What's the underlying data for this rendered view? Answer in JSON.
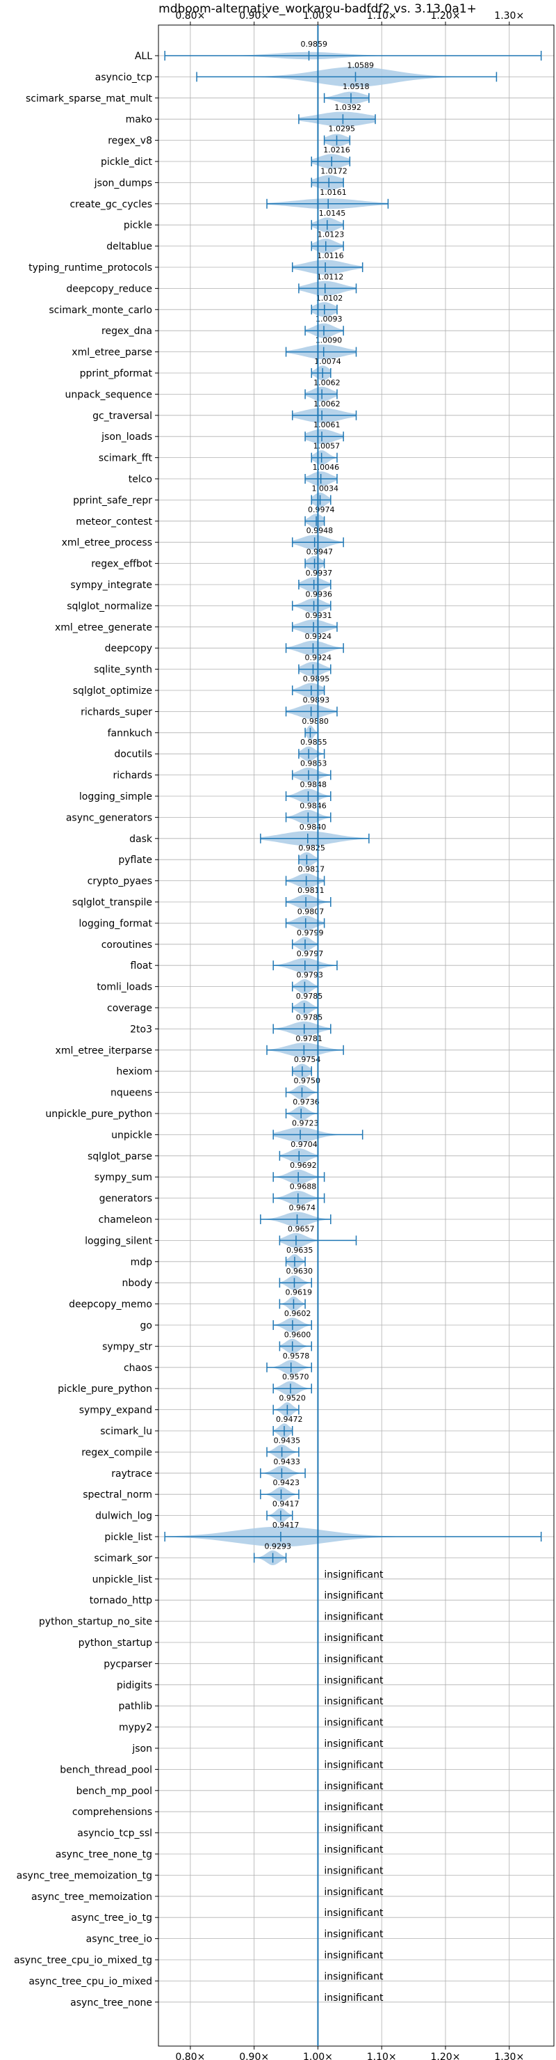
{
  "chart_data": {
    "type": "violin",
    "title": "mdboom-alternative_workarou-badfdf2 vs. 3.13.0a1+",
    "xlim": [
      0.75,
      1.37
    ],
    "x_ticks": [
      0.8,
      0.9,
      1.0,
      1.1,
      1.2,
      1.3
    ],
    "x_tick_labels": [
      "0.80×",
      "0.90×",
      "1.00×",
      "1.10×",
      "1.20×",
      "1.30×"
    ],
    "reference_line": 1.0,
    "grid": true,
    "colors": {
      "violin": "#aacbe6",
      "line": "#1f77b4",
      "grid": "#b0b0b0"
    },
    "insignificant_text": "insignificant",
    "rows": [
      {
        "name": "ALL",
        "value": 0.9859,
        "label": "0.9859",
        "min": 0.76,
        "max": 1.35,
        "spread": 0.05,
        "width": 0.35
      },
      {
        "name": "asyncio_tcp",
        "value": 1.0589,
        "label": "1.0589",
        "min": 0.81,
        "max": 1.28,
        "spread": 0.06,
        "width": 0.95
      },
      {
        "name": "scimark_sparse_mat_mult",
        "value": 1.0518,
        "label": "1.0518",
        "min": 1.01,
        "max": 1.08,
        "spread": 0.02,
        "width": 0.6
      },
      {
        "name": "mako",
        "value": 1.0392,
        "label": "1.0392",
        "min": 0.97,
        "max": 1.09,
        "spread": 0.04,
        "width": 0.7
      },
      {
        "name": "regex_v8",
        "value": 1.0295,
        "label": "1.0295",
        "min": 1.01,
        "max": 1.05,
        "spread": 0.015,
        "width": 0.6
      },
      {
        "name": "pickle_dict",
        "value": 1.0216,
        "label": "1.0216",
        "min": 0.99,
        "max": 1.05,
        "spread": 0.02,
        "width": 0.7
      },
      {
        "name": "json_dumps",
        "value": 1.0172,
        "label": "1.0172",
        "min": 0.99,
        "max": 1.04,
        "spread": 0.02,
        "width": 0.7
      },
      {
        "name": "create_gc_cycles",
        "value": 1.0161,
        "label": "1.0161",
        "min": 0.92,
        "max": 1.11,
        "spread": 0.05,
        "width": 0.5
      },
      {
        "name": "pickle",
        "value": 1.0145,
        "label": "1.0145",
        "min": 0.99,
        "max": 1.04,
        "spread": 0.015,
        "width": 0.7
      },
      {
        "name": "deltablue",
        "value": 1.0123,
        "label": "1.0123",
        "min": 0.99,
        "max": 1.04,
        "spread": 0.015,
        "width": 0.7
      },
      {
        "name": "typing_runtime_protocols",
        "value": 1.0116,
        "label": "1.0116",
        "min": 0.96,
        "max": 1.07,
        "spread": 0.03,
        "width": 0.7
      },
      {
        "name": "deepcopy_reduce",
        "value": 1.0112,
        "label": "1.0112",
        "min": 0.97,
        "max": 1.06,
        "spread": 0.025,
        "width": 0.7
      },
      {
        "name": "scimark_monte_carlo",
        "value": 1.0102,
        "label": "1.0102",
        "min": 0.99,
        "max": 1.03,
        "spread": 0.015,
        "width": 0.7
      },
      {
        "name": "regex_dna",
        "value": 1.0093,
        "label": "1.0093",
        "min": 0.98,
        "max": 1.04,
        "spread": 0.015,
        "width": 0.7
      },
      {
        "name": "xml_etree_parse",
        "value": 1.009,
        "label": "1.0090",
        "min": 0.95,
        "max": 1.06,
        "spread": 0.03,
        "width": 0.7
      },
      {
        "name": "pprint_pformat",
        "value": 1.0074,
        "label": "1.0074",
        "min": 0.99,
        "max": 1.02,
        "spread": 0.01,
        "width": 0.7
      },
      {
        "name": "unpack_sequence",
        "value": 1.0062,
        "label": "1.0062",
        "min": 0.98,
        "max": 1.03,
        "spread": 0.015,
        "width": 0.7
      },
      {
        "name": "gc_traversal",
        "value": 1.0062,
        "label": "1.0062",
        "min": 0.96,
        "max": 1.06,
        "spread": 0.03,
        "width": 0.7
      },
      {
        "name": "json_loads",
        "value": 1.0061,
        "label": "1.0061",
        "min": 0.98,
        "max": 1.04,
        "spread": 0.02,
        "width": 0.7
      },
      {
        "name": "scimark_fft",
        "value": 1.0057,
        "label": "1.0057",
        "min": 0.99,
        "max": 1.03,
        "spread": 0.01,
        "width": 0.7
      },
      {
        "name": "telco",
        "value": 1.0046,
        "label": "1.0046",
        "min": 0.98,
        "max": 1.03,
        "spread": 0.015,
        "width": 0.7
      },
      {
        "name": "pprint_safe_repr",
        "value": 1.0034,
        "label": "1.0034",
        "min": 0.99,
        "max": 1.02,
        "spread": 0.01,
        "width": 0.7
      },
      {
        "name": "meteor_contest",
        "value": 0.9974,
        "label": "0.9974",
        "min": 0.98,
        "max": 1.01,
        "spread": 0.01,
        "width": 0.7
      },
      {
        "name": "xml_etree_process",
        "value": 0.9948,
        "label": "0.9948",
        "min": 0.96,
        "max": 1.04,
        "spread": 0.02,
        "width": 0.7
      },
      {
        "name": "regex_effbot",
        "value": 0.9947,
        "label": "0.9947",
        "min": 0.98,
        "max": 1.01,
        "spread": 0.01,
        "width": 0.7
      },
      {
        "name": "sympy_integrate",
        "value": 0.9937,
        "label": "0.9937",
        "min": 0.97,
        "max": 1.02,
        "spread": 0.015,
        "width": 0.7
      },
      {
        "name": "sqlglot_normalize",
        "value": 0.9936,
        "label": "0.9936",
        "min": 0.96,
        "max": 1.02,
        "spread": 0.015,
        "width": 0.7
      },
      {
        "name": "xml_etree_generate",
        "value": 0.9931,
        "label": "0.9931",
        "min": 0.96,
        "max": 1.03,
        "spread": 0.02,
        "width": 0.7
      },
      {
        "name": "deepcopy",
        "value": 0.9924,
        "label": "0.9924",
        "min": 0.95,
        "max": 1.04,
        "spread": 0.02,
        "width": 0.7
      },
      {
        "name": "sqlite_synth",
        "value": 0.9924,
        "label": "0.9924",
        "min": 0.97,
        "max": 1.02,
        "spread": 0.015,
        "width": 0.7
      },
      {
        "name": "sqlglot_optimize",
        "value": 0.9895,
        "label": "0.9895",
        "min": 0.96,
        "max": 1.01,
        "spread": 0.015,
        "width": 0.7
      },
      {
        "name": "richards_super",
        "value": 0.9893,
        "label": "0.9893",
        "min": 0.95,
        "max": 1.03,
        "spread": 0.02,
        "width": 0.7
      },
      {
        "name": "fannkuch",
        "value": 0.988,
        "label": "0.9880",
        "min": 0.98,
        "max": 1.0,
        "spread": 0.005,
        "width": 0.7
      },
      {
        "name": "docutils",
        "value": 0.9855,
        "label": "0.9855",
        "min": 0.97,
        "max": 1.01,
        "spread": 0.01,
        "width": 0.7
      },
      {
        "name": "richards",
        "value": 0.9853,
        "label": "0.9853",
        "min": 0.96,
        "max": 1.02,
        "spread": 0.015,
        "width": 0.7
      },
      {
        "name": "logging_simple",
        "value": 0.9848,
        "label": "0.9848",
        "min": 0.95,
        "max": 1.02,
        "spread": 0.015,
        "width": 0.7
      },
      {
        "name": "async_generators",
        "value": 0.9846,
        "label": "0.9846",
        "min": 0.95,
        "max": 1.02,
        "spread": 0.015,
        "width": 0.7
      },
      {
        "name": "dask",
        "value": 0.984,
        "label": "0.9840",
        "min": 0.91,
        "max": 1.08,
        "spread": 0.04,
        "width": 0.7
      },
      {
        "name": "pyflate",
        "value": 0.9825,
        "label": "0.9825",
        "min": 0.97,
        "max": 1.0,
        "spread": 0.01,
        "width": 0.7
      },
      {
        "name": "crypto_pyaes",
        "value": 0.9817,
        "label": "0.9817",
        "min": 0.95,
        "max": 1.01,
        "spread": 0.015,
        "width": 0.7
      },
      {
        "name": "sqlglot_transpile",
        "value": 0.9811,
        "label": "0.9811",
        "min": 0.95,
        "max": 1.02,
        "spread": 0.015,
        "width": 0.7
      },
      {
        "name": "logging_format",
        "value": 0.9807,
        "label": "0.9807",
        "min": 0.95,
        "max": 1.01,
        "spread": 0.015,
        "width": 0.7
      },
      {
        "name": "coroutines",
        "value": 0.9799,
        "label": "0.9799",
        "min": 0.96,
        "max": 1.0,
        "spread": 0.01,
        "width": 0.7
      },
      {
        "name": "float",
        "value": 0.9797,
        "label": "0.9797",
        "min": 0.93,
        "max": 1.03,
        "spread": 0.02,
        "width": 0.7
      },
      {
        "name": "tomli_loads",
        "value": 0.9793,
        "label": "0.9793",
        "min": 0.96,
        "max": 1.0,
        "spread": 0.01,
        "width": 0.7
      },
      {
        "name": "coverage",
        "value": 0.9785,
        "label": "0.9785",
        "min": 0.96,
        "max": 1.0,
        "spread": 0.01,
        "width": 0.7
      },
      {
        "name": "2to3",
        "value": 0.9785,
        "label": "0.9785",
        "min": 0.93,
        "max": 1.02,
        "spread": 0.02,
        "width": 0.7
      },
      {
        "name": "xml_etree_iterparse",
        "value": 0.9781,
        "label": "0.9781",
        "min": 0.92,
        "max": 1.04,
        "spread": 0.025,
        "width": 0.7
      },
      {
        "name": "hexiom",
        "value": 0.9754,
        "label": "0.9754",
        "min": 0.96,
        "max": 0.99,
        "spread": 0.01,
        "width": 0.7
      },
      {
        "name": "nqueens",
        "value": 0.975,
        "label": "0.9750",
        "min": 0.95,
        "max": 1.0,
        "spread": 0.01,
        "width": 0.7
      },
      {
        "name": "unpickle_pure_python",
        "value": 0.9736,
        "label": "0.9736",
        "min": 0.95,
        "max": 1.0,
        "spread": 0.01,
        "width": 0.7
      },
      {
        "name": "unpickle",
        "value": 0.9723,
        "label": "0.9723",
        "min": 0.93,
        "max": 1.07,
        "spread": 0.025,
        "width": 0.7
      },
      {
        "name": "sqlglot_parse",
        "value": 0.9704,
        "label": "0.9704",
        "min": 0.94,
        "max": 1.0,
        "spread": 0.015,
        "width": 0.7
      },
      {
        "name": "sympy_sum",
        "value": 0.9692,
        "label": "0.9692",
        "min": 0.93,
        "max": 1.01,
        "spread": 0.015,
        "width": 0.7
      },
      {
        "name": "generators",
        "value": 0.9688,
        "label": "0.9688",
        "min": 0.93,
        "max": 1.01,
        "spread": 0.015,
        "width": 0.7
      },
      {
        "name": "chameleon",
        "value": 0.9674,
        "label": "0.9674",
        "min": 0.91,
        "max": 1.02,
        "spread": 0.02,
        "width": 0.7
      },
      {
        "name": "logging_silent",
        "value": 0.9657,
        "label": "0.9657",
        "min": 0.94,
        "max": 1.06,
        "spread": 0.015,
        "width": 0.7
      },
      {
        "name": "mdp",
        "value": 0.9635,
        "label": "0.9635",
        "min": 0.95,
        "max": 0.98,
        "spread": 0.008,
        "width": 0.7
      },
      {
        "name": "nbody",
        "value": 0.963,
        "label": "0.9630",
        "min": 0.94,
        "max": 0.99,
        "spread": 0.01,
        "width": 0.7
      },
      {
        "name": "deepcopy_memo",
        "value": 0.9619,
        "label": "0.9619",
        "min": 0.94,
        "max": 0.98,
        "spread": 0.008,
        "width": 0.7
      },
      {
        "name": "go",
        "value": 0.9602,
        "label": "0.9602",
        "min": 0.93,
        "max": 0.99,
        "spread": 0.012,
        "width": 0.7
      },
      {
        "name": "sympy_str",
        "value": 0.96,
        "label": "0.9600",
        "min": 0.94,
        "max": 0.99,
        "spread": 0.01,
        "width": 0.7
      },
      {
        "name": "chaos",
        "value": 0.9578,
        "label": "0.9578",
        "min": 0.92,
        "max": 0.99,
        "spread": 0.012,
        "width": 0.7
      },
      {
        "name": "pickle_pure_python",
        "value": 0.957,
        "label": "0.9570",
        "min": 0.93,
        "max": 0.99,
        "spread": 0.012,
        "width": 0.7
      },
      {
        "name": "sympy_expand",
        "value": 0.952,
        "label": "0.9520",
        "min": 0.93,
        "max": 0.97,
        "spread": 0.008,
        "width": 0.7
      },
      {
        "name": "scimark_lu",
        "value": 0.9472,
        "label": "0.9472",
        "min": 0.93,
        "max": 0.96,
        "spread": 0.008,
        "width": 0.7
      },
      {
        "name": "regex_compile",
        "value": 0.9435,
        "label": "0.9435",
        "min": 0.92,
        "max": 0.97,
        "spread": 0.01,
        "width": 0.7
      },
      {
        "name": "raytrace",
        "value": 0.9433,
        "label": "0.9433",
        "min": 0.91,
        "max": 0.98,
        "spread": 0.012,
        "width": 0.7
      },
      {
        "name": "spectral_norm",
        "value": 0.9423,
        "label": "0.9423",
        "min": 0.91,
        "max": 0.97,
        "spread": 0.01,
        "width": 0.7
      },
      {
        "name": "dulwich_log",
        "value": 0.9417,
        "label": "0.9417",
        "min": 0.92,
        "max": 0.96,
        "spread": 0.008,
        "width": 0.7
      },
      {
        "name": "pickle_list",
        "value": 0.9417,
        "label": "0.9417",
        "min": 0.76,
        "max": 1.35,
        "spread": 0.07,
        "width": 0.95
      },
      {
        "name": "scimark_sor",
        "value": 0.9293,
        "label": "0.9293",
        "min": 0.9,
        "max": 0.95,
        "spread": 0.01,
        "width": 0.7
      },
      {
        "name": "unpickle_list",
        "insignificant": true
      },
      {
        "name": "tornado_http",
        "insignificant": true
      },
      {
        "name": "python_startup_no_site",
        "insignificant": true
      },
      {
        "name": "python_startup",
        "insignificant": true
      },
      {
        "name": "pycparser",
        "insignificant": true
      },
      {
        "name": "pidigits",
        "insignificant": true
      },
      {
        "name": "pathlib",
        "insignificant": true
      },
      {
        "name": "mypy2",
        "insignificant": true
      },
      {
        "name": "json",
        "insignificant": true
      },
      {
        "name": "bench_thread_pool",
        "insignificant": true
      },
      {
        "name": "bench_mp_pool",
        "insignificant": true
      },
      {
        "name": "comprehensions",
        "insignificant": true
      },
      {
        "name": "asyncio_tcp_ssl",
        "insignificant": true
      },
      {
        "name": "async_tree_none_tg",
        "insignificant": true
      },
      {
        "name": "async_tree_memoization_tg",
        "insignificant": true
      },
      {
        "name": "async_tree_memoization",
        "insignificant": true
      },
      {
        "name": "async_tree_io_tg",
        "insignificant": true
      },
      {
        "name": "async_tree_io",
        "insignificant": true
      },
      {
        "name": "async_tree_cpu_io_mixed_tg",
        "insignificant": true
      },
      {
        "name": "async_tree_cpu_io_mixed",
        "insignificant": true
      },
      {
        "name": "async_tree_none",
        "insignificant": true
      }
    ]
  }
}
